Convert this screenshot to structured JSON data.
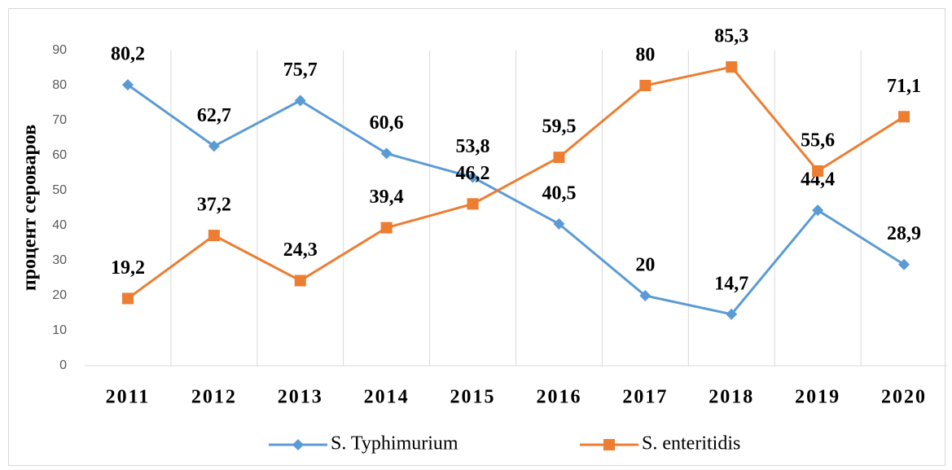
{
  "chart_data": {
    "type": "line",
    "y_label": "процент сероваров",
    "categories": [
      "2011",
      "2012",
      "2013",
      "2014",
      "2015",
      "2016",
      "2017",
      "2018",
      "2019",
      "2020"
    ],
    "series": [
      {
        "name": "S. Typhimurium",
        "color": "#5b9bd5",
        "marker": "diamond",
        "values": [
          80.2,
          62.7,
          75.7,
          60.6,
          53.8,
          40.5,
          20,
          14.7,
          44.4,
          28.9
        ],
        "value_labels": [
          "80,2",
          "62,7",
          "75,7",
          "60,6",
          "53,8",
          "40,5",
          "20",
          "14,7",
          "44,4",
          "28,9"
        ]
      },
      {
        "name": "S. enteritidis",
        "color": "#ed7d31",
        "marker": "square",
        "values": [
          19.2,
          37.2,
          24.3,
          39.4,
          46.2,
          59.5,
          80,
          85.3,
          55.6,
          71.1
        ],
        "value_labels": [
          "19,2",
          "37,2",
          "24,3",
          "39,4",
          "46,2",
          "59,5",
          "80",
          "85,3",
          "55,6",
          "71,1"
        ]
      }
    ],
    "ylim": [
      0,
      90
    ],
    "yticks": [
      0,
      10,
      20,
      30,
      40,
      50,
      60,
      70,
      80,
      90
    ],
    "grid": "vertical",
    "legend": "bottom"
  }
}
